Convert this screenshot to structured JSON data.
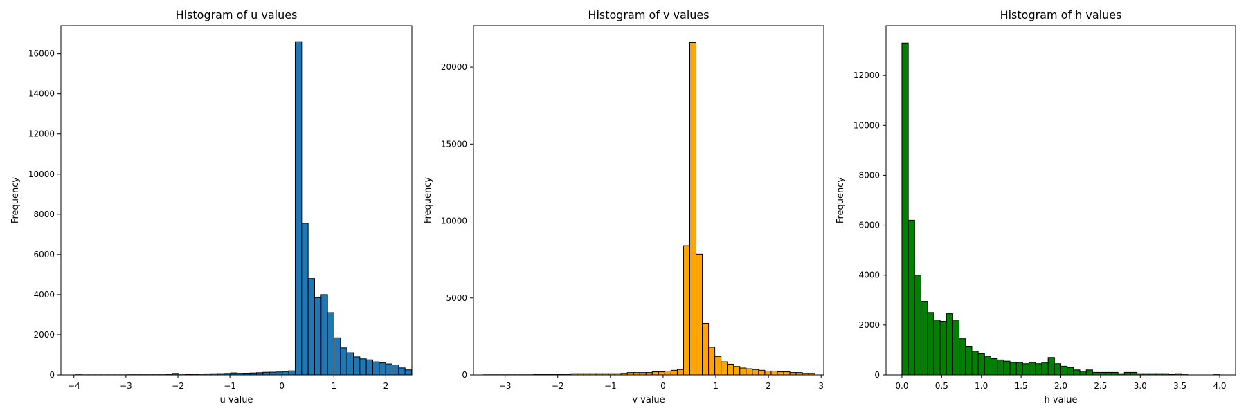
{
  "chart_data": [
    {
      "type": "bar",
      "title": "Histogram of u values",
      "xlabel": "u value",
      "ylabel": "Frequency",
      "color": "#1f77b4",
      "edge_color": "#000000",
      "xlim": [
        -4.25,
        2.5
      ],
      "ylim": [
        0,
        17400
      ],
      "xticks": [
        -4,
        -3,
        -2,
        -1,
        0,
        1,
        2
      ],
      "xtick_labels": [
        "−4",
        "−3",
        "−2",
        "−1",
        "0",
        "1",
        "2"
      ],
      "yticks": [
        0,
        2000,
        4000,
        6000,
        8000,
        10000,
        12000,
        14000,
        16000
      ],
      "ytick_labels": [
        "0",
        "2000",
        "4000",
        "6000",
        "8000",
        "10000",
        "12000",
        "14000",
        "16000"
      ],
      "bin_start": -3.97,
      "bin_width": 0.1243,
      "values": [
        10,
        5,
        5,
        5,
        5,
        5,
        5,
        5,
        10,
        10,
        10,
        10,
        10,
        10,
        15,
        75,
        10,
        30,
        40,
        50,
        55,
        60,
        65,
        75,
        100,
        80,
        85,
        95,
        110,
        130,
        135,
        145,
        170,
        200,
        16600,
        7550,
        4800,
        3850,
        4000,
        3100,
        1850,
        1350,
        1100,
        900,
        800,
        750,
        650,
        600,
        550,
        500,
        350,
        250
      ]
    },
    {
      "type": "bar",
      "title": "Histogram of v values",
      "xlabel": "v value",
      "ylabel": "Frequency",
      "color": "#ffa500",
      "edge_color": "#000000",
      "xlim": [
        -3.6,
        3.05
      ],
      "ylim": [
        0,
        22700
      ],
      "xticks": [
        -3,
        -2,
        -1,
        0,
        1,
        2,
        3
      ],
      "xtick_labels": [
        "−3",
        "−2",
        "−1",
        "0",
        "1",
        "2",
        "3"
      ],
      "yticks": [
        0,
        5000,
        10000,
        15000,
        20000
      ],
      "ytick_labels": [
        "0",
        "5000",
        "10000",
        "15000",
        "20000"
      ],
      "bin_start": -3.41,
      "bin_width": 0.1187,
      "values": [
        10,
        10,
        10,
        10,
        10,
        10,
        10,
        10,
        20,
        20,
        20,
        20,
        20,
        50,
        80,
        80,
        80,
        80,
        80,
        80,
        80,
        80,
        100,
        150,
        150,
        150,
        150,
        200,
        200,
        250,
        300,
        350,
        8400,
        21600,
        7850,
        3350,
        1800,
        1200,
        850,
        700,
        550,
        450,
        400,
        350,
        300,
        250,
        250,
        200,
        200,
        150,
        150,
        100,
        100
      ]
    },
    {
      "type": "bar",
      "title": "Histogram of h values",
      "xlabel": "h value",
      "ylabel": "Frequency",
      "color": "#008000",
      "edge_color": "#000000",
      "xlim": [
        -0.2,
        4.2
      ],
      "ylim": [
        0,
        14000
      ],
      "xticks": [
        0,
        0.5,
        1,
        1.5,
        2,
        2.5,
        3,
        3.5,
        4
      ],
      "xtick_labels": [
        "0.0",
        "0.5",
        "1.0",
        "1.5",
        "2.0",
        "2.5",
        "3.0",
        "3.5",
        "4.0"
      ],
      "yticks": [
        0,
        2000,
        4000,
        6000,
        8000,
        10000,
        12000
      ],
      "ytick_labels": [
        "0",
        "2000",
        "4000",
        "6000",
        "8000",
        "10000",
        "12000"
      ],
      "bin_start": 0.0,
      "bin_width": 0.08,
      "values": [
        13300,
        6200,
        4000,
        2950,
        2500,
        2200,
        2150,
        2450,
        2200,
        1450,
        1150,
        950,
        850,
        750,
        650,
        600,
        550,
        500,
        500,
        450,
        500,
        450,
        500,
        700,
        450,
        350,
        300,
        200,
        150,
        200,
        100,
        100,
        100,
        100,
        50,
        100,
        100,
        50,
        50,
        50,
        50,
        50,
        25,
        50,
        10,
        0,
        0,
        0,
        0,
        10
      ]
    }
  ]
}
